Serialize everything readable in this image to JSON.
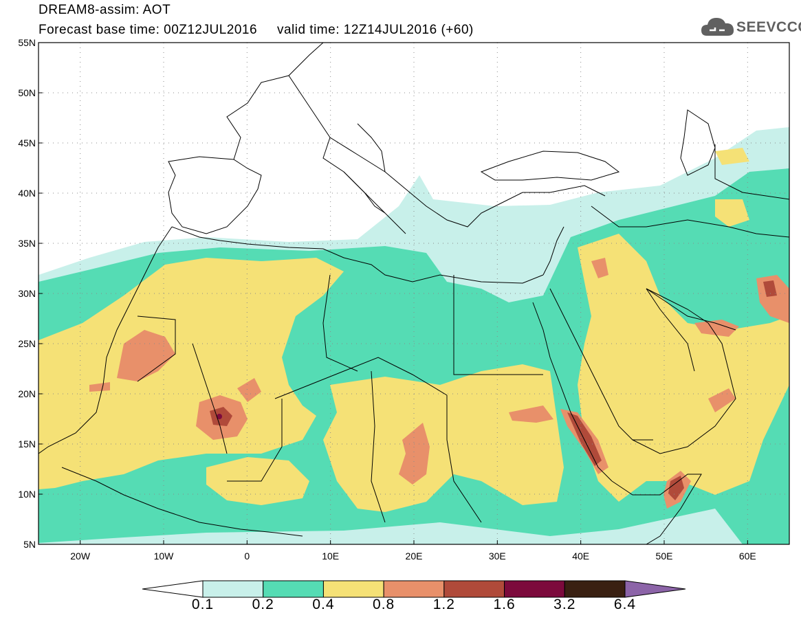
{
  "header": {
    "title_line1": "DREAM8-assim: AOT",
    "title_line2": "Forecast base time: 00Z12JUL2016     valid time: 12Z14JUL2016 (+60)"
  },
  "logo": {
    "text": "SEEVCCC",
    "icon": "cloud-logo-icon"
  },
  "map": {
    "lat_labels": [
      "55N",
      "50N",
      "45N",
      "40N",
      "35N",
      "30N",
      "25N",
      "20N",
      "15N",
      "10N",
      "5N"
    ],
    "lon_labels": [
      "20W",
      "10W",
      "0",
      "10E",
      "20E",
      "30E",
      "40E",
      "50E",
      "60E"
    ],
    "lat_range": [
      5,
      55
    ],
    "lon_range": [
      -25,
      65
    ],
    "grid": "dotted",
    "field": "AOT"
  },
  "colorbar": {
    "ticks": [
      "0.1",
      "0.2",
      "0.4",
      "0.8",
      "1.2",
      "1.6",
      "3.2",
      "6.4"
    ],
    "colors": [
      "#ffffff",
      "#c8f0ea",
      "#55dcb4",
      "#f5e176",
      "#e8906a",
      "#b04a3a",
      "#7c0a3c",
      "#3a2012",
      "#8c64a8"
    ]
  },
  "palette": {
    "c1": "#c8f0ea",
    "c2": "#55dcb4",
    "c3": "#f5e176",
    "c4": "#e8906a",
    "c5": "#b04a3a",
    "c6": "#7c0a3c"
  }
}
